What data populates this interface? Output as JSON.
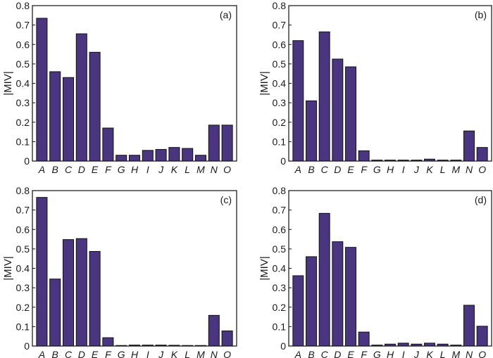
{
  "figure": {
    "bar_color": "#4a3580",
    "bar_stroke": "#111111",
    "axis_color": "#111111"
  },
  "chart_data": [
    {
      "type": "bar",
      "panel_label": "(a)",
      "title": "",
      "xlabel": "",
      "ylabel": "|MIV|",
      "ylim": [
        0,
        0.8
      ],
      "yticks": [
        "0",
        "0.1",
        "0.2",
        "0.3",
        "0.4",
        "0.5",
        "0.6",
        "0.7",
        "0.8"
      ],
      "categories": [
        "A",
        "B",
        "C",
        "D",
        "E",
        "F",
        "G",
        "H",
        "I",
        "J",
        "K",
        "L",
        "M",
        "N",
        "O"
      ],
      "values": [
        0.735,
        0.46,
        0.43,
        0.655,
        0.56,
        0.17,
        0.03,
        0.03,
        0.055,
        0.06,
        0.07,
        0.065,
        0.03,
        0.185,
        0.185
      ]
    },
    {
      "type": "bar",
      "panel_label": "(b)",
      "title": "",
      "xlabel": "",
      "ylabel": "|MIV|",
      "ylim": [
        0,
        0.8
      ],
      "yticks": [
        "0",
        "0.1",
        "0.2",
        "0.3",
        "0.4",
        "0.5",
        "0.6",
        "0.7",
        "0.8"
      ],
      "categories": [
        "A",
        "B",
        "C",
        "D",
        "E",
        "F",
        "G",
        "H",
        "I",
        "J",
        "K",
        "L",
        "M",
        "N",
        "O"
      ],
      "values": [
        0.62,
        0.31,
        0.665,
        0.525,
        0.485,
        0.053,
        0.005,
        0.005,
        0.005,
        0.005,
        0.01,
        0.005,
        0.005,
        0.155,
        0.07
      ]
    },
    {
      "type": "bar",
      "panel_label": "(c)",
      "title": "",
      "xlabel": "",
      "ylabel": "|MIV|",
      "ylim": [
        0,
        0.8
      ],
      "yticks": [
        "0",
        "0.1",
        "0.2",
        "0.3",
        "0.4",
        "0.5",
        "0.6",
        "0.7",
        "0.8"
      ],
      "categories": [
        "A",
        "B",
        "C",
        "D",
        "E",
        "F",
        "G",
        "H",
        "I",
        "J",
        "K",
        "L",
        "M",
        "N",
        "O"
      ],
      "values": [
        0.765,
        0.345,
        0.548,
        0.553,
        0.487,
        0.043,
        0.002,
        0.005,
        0.005,
        0.005,
        0.004,
        0.002,
        0.002,
        0.158,
        0.078
      ]
    },
    {
      "type": "bar",
      "panel_label": "(d)",
      "title": "",
      "xlabel": "",
      "ylabel": "|MIV|",
      "ylim": [
        0,
        0.8
      ],
      "yticks": [
        "0",
        "0.1",
        "0.2",
        "0.3",
        "0.4",
        "0.5",
        "0.6",
        "0.7",
        "0.8"
      ],
      "categories": [
        "A",
        "B",
        "C",
        "D",
        "E",
        "F",
        "G",
        "H",
        "I",
        "J",
        "K",
        "L",
        "M",
        "N",
        "O"
      ],
      "values": [
        0.362,
        0.46,
        0.683,
        0.537,
        0.508,
        0.072,
        0.005,
        0.01,
        0.015,
        0.01,
        0.015,
        0.01,
        0.005,
        0.21,
        0.102
      ]
    }
  ]
}
